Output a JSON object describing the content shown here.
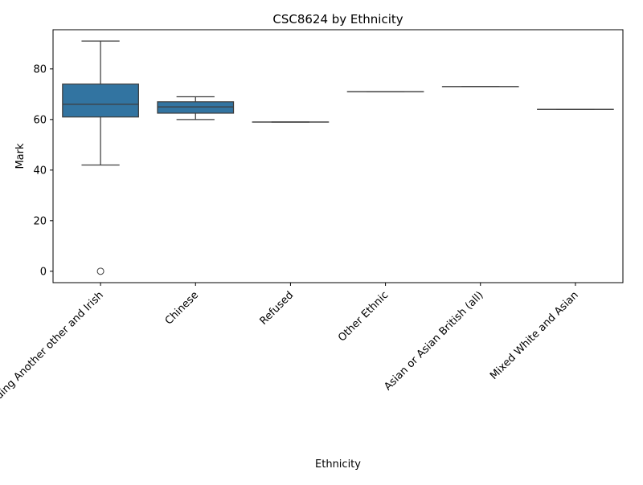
{
  "chart_data": {
    "type": "box",
    "title": "CSC8624 by Ethnicity",
    "xlabel": "Ethnicity",
    "ylabel": "Mark",
    "ylim": [
      -4.5,
      95.5
    ],
    "yticks": [
      0,
      20,
      40,
      60,
      80
    ],
    "grid": false,
    "box_color": "#3274a1",
    "line_color": "#3d3d3d",
    "categories": [
      "White including Another other and Irish",
      "Chinese",
      "Refused",
      "Other Ethnic",
      "Asian or Asian British (all)",
      "Mixed White and Asian"
    ],
    "boxes": [
      {
        "q1": 61,
        "median": 66,
        "q3": 74,
        "whisker_low": 42,
        "whisker_high": 91,
        "outliers": [
          0
        ]
      },
      {
        "q1": 62.5,
        "median": 65,
        "q3": 67,
        "whisker_low": 60,
        "whisker_high": 69,
        "outliers": []
      },
      {
        "q1": 59,
        "median": 59,
        "q3": 59,
        "whisker_low": 59,
        "whisker_high": 59,
        "outliers": []
      },
      {
        "q1": 71,
        "median": 71,
        "q3": 71,
        "whisker_low": 71,
        "whisker_high": 71,
        "outliers": []
      },
      {
        "q1": 73,
        "median": 73,
        "q3": 73,
        "whisker_low": 73,
        "whisker_high": 73,
        "outliers": []
      },
      {
        "q1": 64,
        "median": 64,
        "q3": 64,
        "whisker_low": 64,
        "whisker_high": 64,
        "outliers": []
      }
    ]
  }
}
